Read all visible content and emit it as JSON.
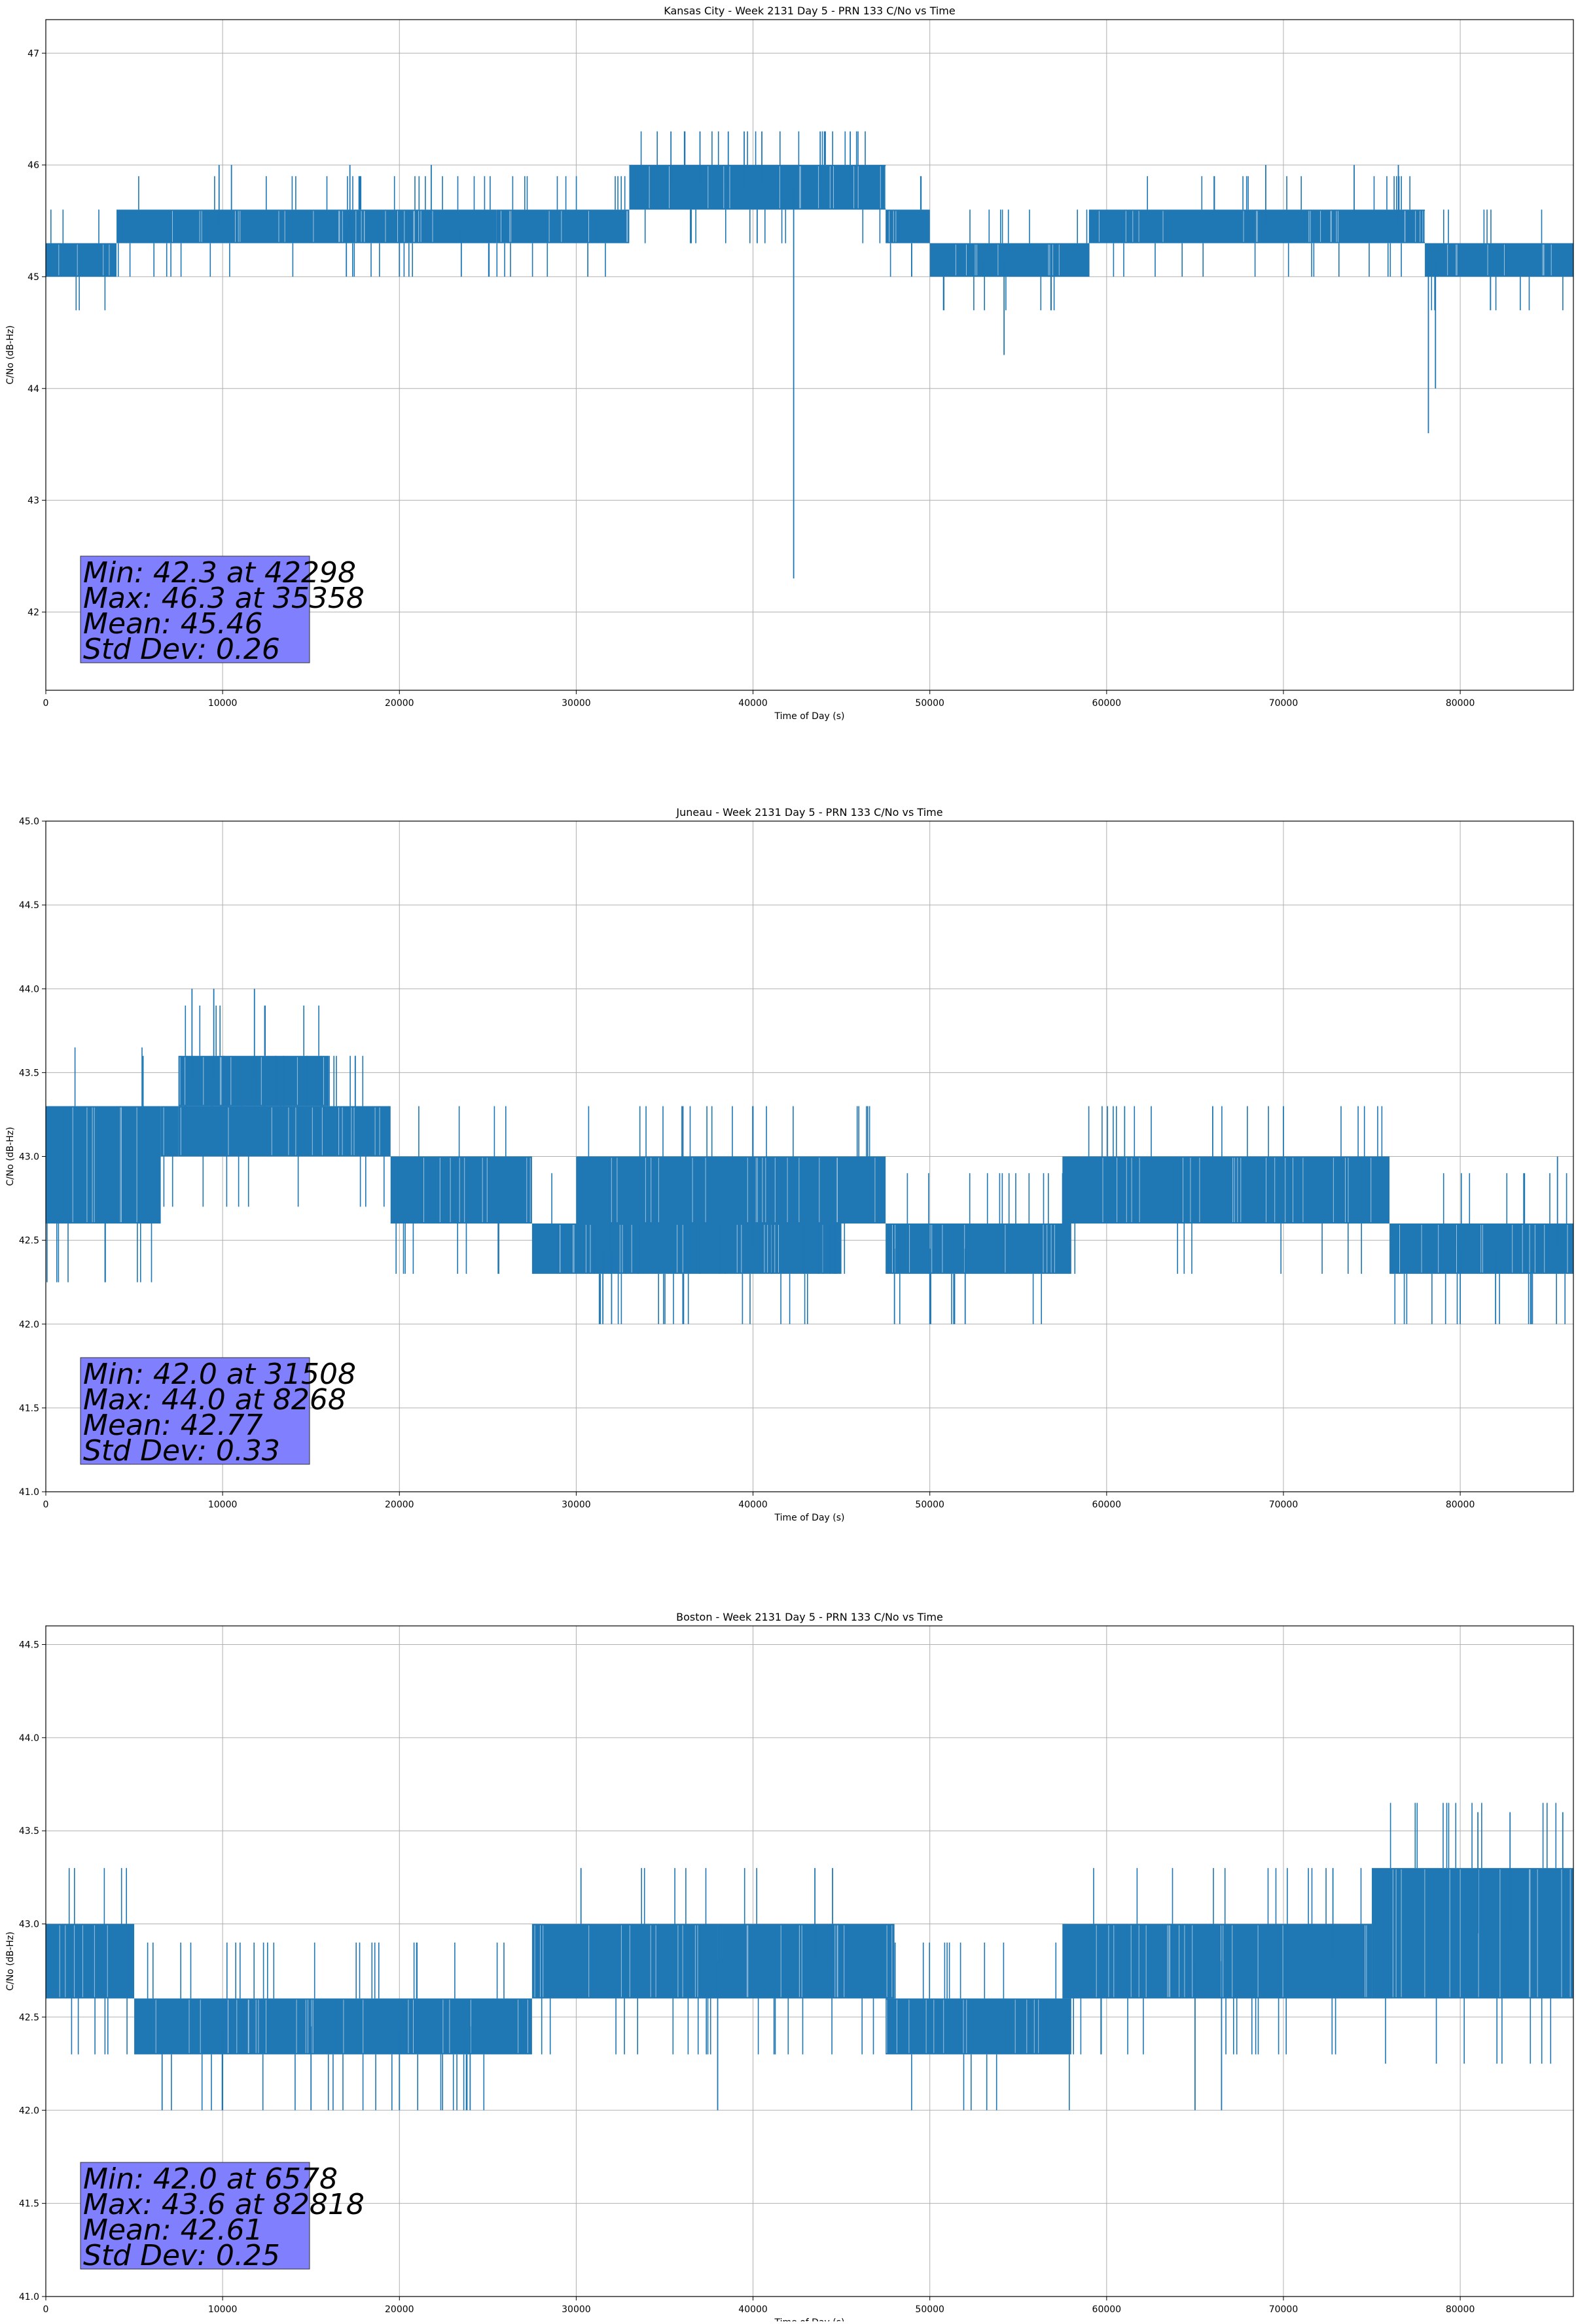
{
  "chart_data": [
    {
      "type": "line",
      "title": "Kansas City - Week 2131 Day 5 - PRN 133 C/No vs Time",
      "xlabel": "Time of Day (s)",
      "ylabel": "C/No (dB-Hz)",
      "xlim": [
        0,
        86400
      ],
      "ylim": [
        41.3,
        47.3
      ],
      "xticks": [
        0,
        10000,
        20000,
        30000,
        40000,
        50000,
        60000,
        70000,
        80000
      ],
      "yticks": [
        42,
        43,
        44,
        45,
        46,
        47
      ],
      "ytick_labels": [
        "42",
        "43",
        "44",
        "45",
        "46",
        "47"
      ],
      "series_color": "#1f77b4",
      "bands": [
        {
          "x": [
            0,
            4000
          ],
          "y": [
            45.0,
            45.3
          ]
        },
        {
          "x": [
            4000,
            25500
          ],
          "y": [
            45.3,
            45.6
          ]
        },
        {
          "x": [
            25500,
            33000
          ],
          "y": [
            45.3,
            45.6
          ]
        },
        {
          "x": [
            33000,
            47500
          ],
          "y": [
            45.6,
            46.0
          ]
        },
        {
          "x": [
            47500,
            50000
          ],
          "y": [
            45.3,
            45.6
          ]
        },
        {
          "x": [
            50000,
            59000
          ],
          "y": [
            45.0,
            45.3
          ]
        },
        {
          "x": [
            59000,
            78000
          ],
          "y": [
            45.3,
            45.6
          ]
        },
        {
          "x": [
            78000,
            86400
          ],
          "y": [
            45.0,
            45.3
          ]
        }
      ],
      "spikes": [
        {
          "x": 9800,
          "y": 46.0
        },
        {
          "x": 10500,
          "y": 46.0
        },
        {
          "x": 17200,
          "y": 46.0
        },
        {
          "x": 21800,
          "y": 46.0
        },
        {
          "x": 35358,
          "y": 46.3
        },
        {
          "x": 37000,
          "y": 46.3
        },
        {
          "x": 38600,
          "y": 46.3
        },
        {
          "x": 39500,
          "y": 46.3
        },
        {
          "x": 40500,
          "y": 46.3
        },
        {
          "x": 43800,
          "y": 46.3
        },
        {
          "x": 45500,
          "y": 46.3
        },
        {
          "x": 42298,
          "y": 42.3
        },
        {
          "x": 54200,
          "y": 44.3
        },
        {
          "x": 78200,
          "y": 43.6
        },
        {
          "x": 78600,
          "y": 44.0
        },
        {
          "x": 69000,
          "y": 46.0
        },
        {
          "x": 74000,
          "y": 46.0
        },
        {
          "x": 76500,
          "y": 46.0
        },
        {
          "x": 17000,
          "y": 45.0
        },
        {
          "x": 20000,
          "y": 45.0
        },
        {
          "x": 23500,
          "y": 45.0
        },
        {
          "x": 53000,
          "y": 45.0
        }
      ],
      "stats": {
        "min": "Min: 42.3 at 42298",
        "max": "Max: 46.3 at 35358",
        "mean": "Mean: 45.46",
        "std": "Std Dev: 0.26"
      }
    },
    {
      "type": "line",
      "title": "Juneau - Week 2131 Day 5 - PRN 133 C/No vs Time",
      "xlabel": "Time of Day (s)",
      "ylabel": "C/No (dB-Hz)",
      "xlim": [
        0,
        86400
      ],
      "ylim": [
        41.0,
        45.0
      ],
      "xticks": [
        0,
        10000,
        20000,
        30000,
        40000,
        50000,
        60000,
        70000,
        80000
      ],
      "yticks": [
        41.0,
        41.5,
        42.0,
        42.5,
        43.0,
        43.5,
        44.0,
        44.5,
        45.0
      ],
      "ytick_labels": [
        "41.0",
        "41.5",
        "42.0",
        "42.5",
        "43.0",
        "43.5",
        "44.0",
        "44.5",
        "45.0"
      ],
      "series_color": "#1f77b4",
      "bands": [
        {
          "x": [
            0,
            6500
          ],
          "y": [
            42.6,
            43.3
          ]
        },
        {
          "x": [
            6500,
            7500
          ],
          "y": [
            43.0,
            43.3
          ]
        },
        {
          "x": [
            7500,
            16000
          ],
          "y": [
            43.3,
            43.6
          ]
        },
        {
          "x": [
            7500,
            19500
          ],
          "y": [
            43.0,
            43.3
          ]
        },
        {
          "x": [
            19500,
            27500
          ],
          "y": [
            42.6,
            43.0
          ]
        },
        {
          "x": [
            27500,
            45000
          ],
          "y": [
            42.3,
            42.6
          ]
        },
        {
          "x": [
            30000,
            47500
          ],
          "y": [
            42.6,
            43.0
          ]
        },
        {
          "x": [
            47500,
            58000
          ],
          "y": [
            42.3,
            42.6
          ]
        },
        {
          "x": [
            57500,
            76000
          ],
          "y": [
            42.6,
            43.0
          ]
        },
        {
          "x": [
            76000,
            86400
          ],
          "y": [
            42.3,
            42.6
          ]
        }
      ],
      "spikes": [
        {
          "x": 8268,
          "y": 44.0
        },
        {
          "x": 9500,
          "y": 44.0
        },
        {
          "x": 11800,
          "y": 44.0
        },
        {
          "x": 31508,
          "y": 42.0
        },
        {
          "x": 32000,
          "y": 42.0
        },
        {
          "x": 48000,
          "y": 42.0
        },
        {
          "x": 50000,
          "y": 42.0
        },
        {
          "x": 52000,
          "y": 42.0
        },
        {
          "x": 80000,
          "y": 42.0
        },
        {
          "x": 82000,
          "y": 42.0
        },
        {
          "x": 84000,
          "y": 42.0
        },
        {
          "x": 40000,
          "y": 43.3
        },
        {
          "x": 66000,
          "y": 43.3
        },
        {
          "x": 70000,
          "y": 43.3
        },
        {
          "x": 85500,
          "y": 43.0
        },
        {
          "x": 17500,
          "y": 43.6
        },
        {
          "x": 5500,
          "y": 43.6
        }
      ],
      "stats": {
        "min": "Min: 42.0 at 31508",
        "max": "Max: 44.0 at 8268",
        "mean": "Mean: 42.77",
        "std": "Std Dev: 0.33"
      }
    },
    {
      "type": "line",
      "title": "Boston - Week 2131 Day 5 - PRN 133 C/No vs Time",
      "xlabel": "Time of Day (s)",
      "ylabel": "C/No (dB-Hz)",
      "xlim": [
        0,
        86400
      ],
      "ylim": [
        41.0,
        44.6
      ],
      "xticks": [
        0,
        10000,
        20000,
        30000,
        40000,
        50000,
        60000,
        70000,
        80000
      ],
      "yticks": [
        41.0,
        41.5,
        42.0,
        42.5,
        43.0,
        43.5,
        44.0,
        44.5
      ],
      "ytick_labels": [
        "41.0",
        "41.5",
        "42.0",
        "42.5",
        "43.0",
        "43.5",
        "44.0",
        "44.5"
      ],
      "series_color": "#1f77b4",
      "bands": [
        {
          "x": [
            0,
            5000
          ],
          "y": [
            42.6,
            43.0
          ]
        },
        {
          "x": [
            5000,
            27500
          ],
          "y": [
            42.3,
            42.6
          ]
        },
        {
          "x": [
            27500,
            38000
          ],
          "y": [
            42.6,
            43.0
          ]
        },
        {
          "x": [
            38000,
            48000
          ],
          "y": [
            42.6,
            43.0
          ]
        },
        {
          "x": [
            47500,
            58000
          ],
          "y": [
            42.3,
            42.6
          ]
        },
        {
          "x": [
            57500,
            75000
          ],
          "y": [
            42.6,
            43.0
          ]
        },
        {
          "x": [
            75000,
            86400
          ],
          "y": [
            42.6,
            43.3
          ]
        }
      ],
      "spikes": [
        {
          "x": 6578,
          "y": 42.0
        },
        {
          "x": 10000,
          "y": 42.0
        },
        {
          "x": 15000,
          "y": 42.0
        },
        {
          "x": 20000,
          "y": 42.0
        },
        {
          "x": 24000,
          "y": 42.0
        },
        {
          "x": 38000,
          "y": 42.0
        },
        {
          "x": 65000,
          "y": 42.0
        },
        {
          "x": 66500,
          "y": 42.0
        },
        {
          "x": 43500,
          "y": 43.3
        },
        {
          "x": 44500,
          "y": 43.3
        },
        {
          "x": 72800,
          "y": 43.3
        },
        {
          "x": 81000,
          "y": 43.6
        },
        {
          "x": 82818,
          "y": 43.6
        },
        {
          "x": 85800,
          "y": 43.6
        }
      ],
      "stats": {
        "min": "Min: 42.0 at 6578",
        "max": "Max: 43.6 at 82818",
        "mean": "Mean: 42.61",
        "std": "Std Dev: 0.25"
      }
    }
  ]
}
